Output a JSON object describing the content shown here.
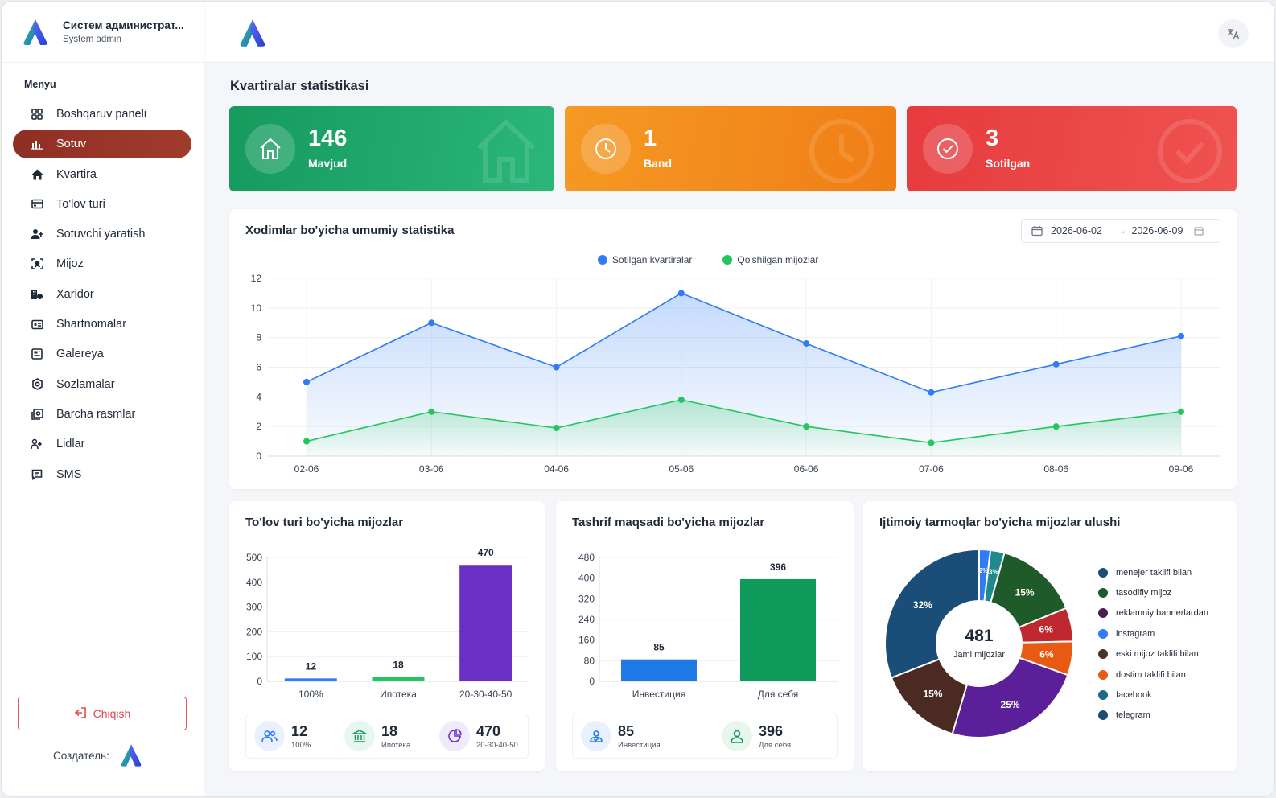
{
  "brand": {
    "title": "Систем администрат...",
    "subtitle": "System admin"
  },
  "menu": {
    "title": "Menyu",
    "items": [
      {
        "label": "Boshqaruv paneli",
        "icon": "grid-icon"
      },
      {
        "label": "Sotuv",
        "icon": "bar-chart-icon",
        "active": true
      },
      {
        "label": "Kvartira",
        "icon": "home-icon"
      },
      {
        "label": "To'lov turi",
        "icon": "payment-card-icon"
      },
      {
        "label": "Sotuvchi yaratish",
        "icon": "user-add-icon"
      },
      {
        "label": "Mijoz",
        "icon": "scan-user-icon"
      },
      {
        "label": "Xaridor",
        "icon": "buyer-icon"
      },
      {
        "label": "Shartnomalar",
        "icon": "contract-icon"
      },
      {
        "label": "Galereya",
        "icon": "gallery-icon"
      },
      {
        "label": "Sozlamalar",
        "icon": "gear-icon"
      },
      {
        "label": "Barcha rasmlar",
        "icon": "images-icon"
      },
      {
        "label": "Lidlar",
        "icon": "leads-icon"
      },
      {
        "label": "SMS",
        "icon": "message-icon"
      }
    ]
  },
  "logout": {
    "label": "Chiqish"
  },
  "creator": {
    "label": "Создатель:"
  },
  "topbar": {
    "language_icon": "translate-icon"
  },
  "page": {
    "title": "Kvartiralar statistikasi"
  },
  "stats": [
    {
      "value": "146",
      "label": "Mavjud",
      "icon": "home-icon",
      "color": "#1fa56c"
    },
    {
      "value": "1",
      "label": "Band",
      "icon": "clock-icon",
      "color": "#f28a1f"
    },
    {
      "value": "3",
      "label": "Sotilgan",
      "icon": "check-circle-icon",
      "color": "#e84545"
    }
  ],
  "line_card": {
    "title": "Xodimlar bo'yicha umumiy statistika",
    "date_from": "2026-06-02",
    "date_to": "2026-06-09",
    "date_separator": "→"
  },
  "payment_card": {
    "title": "To'lov turi bo'yicha mijozlar",
    "summary": [
      {
        "value": "12",
        "label": "100%",
        "icon": "users-icon"
      },
      {
        "value": "18",
        "label": "Ипотека",
        "icon": "bank-icon"
      },
      {
        "value": "470",
        "label": "20-30-40-50",
        "icon": "pie-icon"
      }
    ]
  },
  "visit_card": {
    "title": "Tashrif maqsadi bo'yicha mijozlar",
    "summary": [
      {
        "value": "85",
        "label": "Инвестиция",
        "icon": "investment-user-icon"
      },
      {
        "value": "396",
        "label": "Для себя",
        "icon": "user-icon"
      }
    ]
  },
  "social_card": {
    "title": "Ijtimoiy tarmoqlar bo'yicha mijozlar ulushi",
    "center_value": "481",
    "center_label": "Jami mijozlar"
  },
  "chart_data": [
    {
      "type": "line",
      "x": [
        "02-06",
        "03-06",
        "04-06",
        "05-06",
        "06-06",
        "07-06",
        "08-06",
        "09-06"
      ],
      "series": [
        {
          "name": "Sotilgan kvartiralar",
          "color": "#2f7cf6",
          "values": [
            5,
            9,
            6,
            11,
            7.6,
            4.3,
            6.2,
            8.1
          ]
        },
        {
          "name": "Qo'shilgan mijozlar",
          "color": "#22c55e",
          "values": [
            1,
            3,
            1.9,
            3.8,
            2,
            0.9,
            2,
            3
          ]
        }
      ],
      "ylim": [
        0,
        12
      ],
      "yticks": [
        0,
        2,
        4,
        6,
        8,
        10,
        12
      ],
      "legend": "top-center",
      "grid": true
    },
    {
      "type": "bar",
      "categories": [
        "100%",
        "Ипотека",
        "20-30-40-50"
      ],
      "values": [
        12,
        18,
        470
      ],
      "colors": [
        "#2f7cf6",
        "#22c55e",
        "#6a2fc4"
      ],
      "ylim": [
        0,
        500
      ],
      "yticks": [
        0,
        100,
        200,
        300,
        400,
        500
      ]
    },
    {
      "type": "bar",
      "categories": [
        "Инвестиция",
        "Для себя"
      ],
      "values": [
        85,
        396
      ],
      "colors": [
        "#1f7ae8",
        "#0e9a5a"
      ],
      "ylim": [
        0,
        480
      ],
      "yticks": [
        0,
        80,
        160,
        240,
        320,
        400,
        480
      ]
    },
    {
      "type": "pie",
      "categories": [
        "menejer taklifi bilan",
        "tasodifiy mijoz",
        "reklamniy bannerlardan",
        "instagram",
        "eski mijoz taklifi bilan",
        "dostim taklifi bilan",
        "facebook",
        "telegram"
      ],
      "slices": [
        {
          "name": "instagram",
          "value": 2,
          "label": "2%",
          "color": "#2f7cf6"
        },
        {
          "name": "facebook",
          "value": 2.5,
          "label": "3%",
          "color": "#1f8a8a"
        },
        {
          "name": "tasodifiy mijoz",
          "value": 15,
          "label": "15%",
          "color": "#1f5a2a"
        },
        {
          "name": "reklamniy bannerlardan",
          "value": 6,
          "label": "6%",
          "color": "#c0282f"
        },
        {
          "name": "dostim taklifi bilan",
          "value": 6,
          "label": "6%",
          "color": "#e85a12"
        },
        {
          "name": "menejer taklifi bilan",
          "value": 25,
          "label": "25%",
          "color": "#5b1f9a"
        },
        {
          "name": "eski mijoz taklifi bilan",
          "value": 15,
          "label": "15%",
          "color": "#4a2a22"
        },
        {
          "name": "telegram",
          "value": 32,
          "label": "32%",
          "color": "#1a4e78"
        }
      ],
      "legend_colors": [
        "#1a4e78",
        "#1f5a2a",
        "#4a1f4e",
        "#2f7cf6",
        "#4a3328",
        "#e85a12",
        "#1f6a8a",
        "#1a4e78"
      ]
    }
  ]
}
